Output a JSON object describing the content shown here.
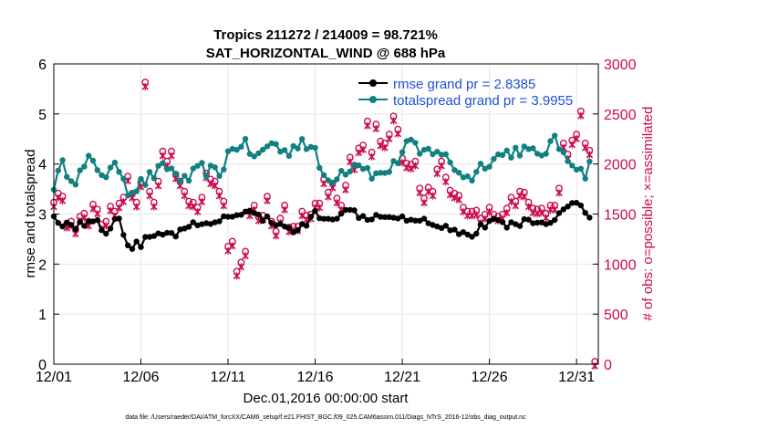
{
  "colors": {
    "rmse": "#000000",
    "spread": "#108080",
    "obs": "#cc0a4f",
    "legend_text": "#1f4fd8",
    "grid": "#e6e6e6"
  },
  "chart_data": {
    "type": "line",
    "title": "Tropics 211272 / 214009 = 98.721%",
    "subtitle": "SAT_HORIZONTAL_WIND @ 688 hPa",
    "xlabel": "Dec.01,2016 00:00:00 start",
    "ylabel": "rmse and totalspread",
    "y2label": "# of obs: o=possible; ×=assimilated",
    "footer": "data file: /Users/raeder/DAI/ATM_forcXX/CAM6_setup/f.e21.FHIST_BGC.f09_025.CAM6assim.011/Diags_NTrS_2016-12/obs_diag_output.nc",
    "x_ticks": [
      {
        "label": "12/01",
        "day": 0
      },
      {
        "label": "12/06",
        "day": 5
      },
      {
        "label": "12/11",
        "day": 10
      },
      {
        "label": "12/16",
        "day": 15
      },
      {
        "label": "12/21",
        "day": 20
      },
      {
        "label": "12/26",
        "day": 25
      },
      {
        "label": "12/31",
        "day": 30
      }
    ],
    "xlim": [
      0,
      31.25
    ],
    "ylim": [
      0,
      6
    ],
    "yticks": [
      "0",
      "1",
      "2",
      "3",
      "4",
      "5",
      "6"
    ],
    "y2lim": [
      0,
      3000
    ],
    "y2ticks": [
      "0",
      "500",
      "1000",
      "1500",
      "2000",
      "2500",
      "3000"
    ],
    "grid": true,
    "legend_position": "top-right",
    "series": [
      {
        "name": "rmse grand pr = 2.8385",
        "axis": "left",
        "marker": "dot",
        "anchors": [
          [
            0,
            2.95
          ],
          [
            0.6,
            2.8
          ],
          [
            1.3,
            2.75
          ],
          [
            2.2,
            2.9
          ],
          [
            3,
            2.65
          ],
          [
            3.7,
            3.0
          ],
          [
            4.2,
            2.35
          ],
          [
            5,
            2.4
          ],
          [
            6,
            2.65
          ],
          [
            7,
            2.6
          ],
          [
            8.2,
            2.8
          ],
          [
            9,
            2.75
          ],
          [
            10,
            2.95
          ],
          [
            11.2,
            3.05
          ],
          [
            12,
            2.9
          ],
          [
            13,
            2.8
          ],
          [
            14,
            2.65
          ],
          [
            15,
            3.0
          ],
          [
            16,
            2.95
          ],
          [
            17,
            3.05
          ],
          [
            18,
            2.95
          ],
          [
            19,
            3.0
          ],
          [
            20,
            2.95
          ],
          [
            21,
            2.9
          ],
          [
            22,
            2.8
          ],
          [
            23,
            2.7
          ],
          [
            23.8,
            2.55
          ],
          [
            25,
            2.85
          ],
          [
            26,
            2.8
          ],
          [
            27,
            2.85
          ],
          [
            28,
            2.8
          ],
          [
            29,
            3.0
          ],
          [
            30,
            3.25
          ],
          [
            30.6,
            2.95
          ]
        ]
      },
      {
        "name": "totalspread grand pr = 3.9955",
        "axis": "left",
        "marker": "dot",
        "anchors": [
          [
            0,
            3.6
          ],
          [
            0.5,
            3.95
          ],
          [
            1.3,
            3.7
          ],
          [
            2,
            4.05
          ],
          [
            3,
            3.8
          ],
          [
            3.8,
            3.95
          ],
          [
            4.3,
            3.45
          ],
          [
            5,
            3.6
          ],
          [
            5.8,
            3.8
          ],
          [
            6.5,
            3.95
          ],
          [
            7.5,
            3.65
          ],
          [
            8.5,
            3.9
          ],
          [
            9.5,
            3.8
          ],
          [
            10,
            4.2
          ],
          [
            10.8,
            4.45
          ],
          [
            11.6,
            4.1
          ],
          [
            12.5,
            4.45
          ],
          [
            13.3,
            4.2
          ],
          [
            14.2,
            4.5
          ],
          [
            15,
            4.2
          ],
          [
            15.6,
            3.65
          ],
          [
            16.5,
            3.85
          ],
          [
            17.5,
            4.05
          ],
          [
            18.5,
            3.75
          ],
          [
            19.5,
            3.95
          ],
          [
            20.3,
            4.45
          ],
          [
            21,
            4.2
          ],
          [
            22,
            4.3
          ],
          [
            22.8,
            4.0
          ],
          [
            23.8,
            3.7
          ],
          [
            24.8,
            4.05
          ],
          [
            25.8,
            4.2
          ],
          [
            26.8,
            4.3
          ],
          [
            27.8,
            4.15
          ],
          [
            28.7,
            4.45
          ],
          [
            29.7,
            4.1
          ],
          [
            30.4,
            3.75
          ],
          [
            30.9,
            4.2
          ]
        ]
      },
      {
        "name": "# of obs possible / assimilated",
        "axis": "right",
        "marker": "o-x",
        "points": [
          [
            0,
            1590
          ],
          [
            0.25,
            1680
          ],
          [
            0.5,
            1650
          ],
          [
            0.75,
            1380
          ],
          [
            1,
            1400
          ],
          [
            1.25,
            1320
          ],
          [
            1.5,
            1450
          ],
          [
            1.75,
            1480
          ],
          [
            2,
            1400
          ],
          [
            2.25,
            1570
          ],
          [
            2.5,
            1520
          ],
          [
            2.75,
            1370
          ],
          [
            3,
            1400
          ],
          [
            3.25,
            1550
          ],
          [
            3.5,
            1500
          ],
          [
            3.75,
            1580
          ],
          [
            4,
            1640
          ],
          [
            4.25,
            1850
          ],
          [
            4.5,
            1680
          ],
          [
            4.75,
            1590
          ],
          [
            5,
            1790
          ],
          [
            5.25,
            2790
          ],
          [
            5.5,
            1700
          ],
          [
            5.75,
            1590
          ],
          [
            6,
            1800
          ],
          [
            6.25,
            2100
          ],
          [
            6.5,
            2000
          ],
          [
            6.75,
            2100
          ],
          [
            7,
            1870
          ],
          [
            7.25,
            1800
          ],
          [
            7.5,
            1700
          ],
          [
            7.75,
            1600
          ],
          [
            8,
            1590
          ],
          [
            8.25,
            1540
          ],
          [
            8.5,
            1640
          ],
          [
            8.75,
            1880
          ],
          [
            9,
            1820
          ],
          [
            9.25,
            1800
          ],
          [
            9.5,
            1700
          ],
          [
            9.75,
            1600
          ],
          [
            10,
            1150
          ],
          [
            10.25,
            1200
          ],
          [
            10.5,
            900
          ],
          [
            10.75,
            990
          ],
          [
            11,
            1100
          ],
          [
            11.25,
            1500
          ],
          [
            11.5,
            1560
          ],
          [
            11.75,
            1450
          ],
          [
            12,
            1460
          ],
          [
            12.25,
            1650
          ],
          [
            12.5,
            1400
          ],
          [
            12.75,
            1300
          ],
          [
            13,
            1430
          ],
          [
            13.25,
            1560
          ],
          [
            13.5,
            1340
          ],
          [
            13.75,
            1350
          ],
          [
            14,
            1350
          ],
          [
            14.25,
            1500
          ],
          [
            14.5,
            1460
          ],
          [
            14.75,
            1470
          ],
          [
            15,
            1580
          ],
          [
            15.25,
            1580
          ],
          [
            15.5,
            1820
          ],
          [
            15.75,
            1690
          ],
          [
            16,
            1780
          ],
          [
            16.25,
            1630
          ],
          [
            16.5,
            1560
          ],
          [
            16.75,
            1760
          ],
          [
            17,
            2040
          ],
          [
            17.25,
            1960
          ],
          [
            17.5,
            2130
          ],
          [
            17.75,
            2160
          ],
          [
            18,
            2400
          ],
          [
            18.25,
            2090
          ],
          [
            18.5,
            2370
          ],
          [
            18.75,
            2200
          ],
          [
            19,
            2180
          ],
          [
            19.25,
            2270
          ],
          [
            19.5,
            2450
          ],
          [
            19.75,
            2320
          ],
          [
            20,
            2030
          ],
          [
            20.25,
            1980
          ],
          [
            20.5,
            1970
          ],
          [
            20.75,
            2000
          ],
          [
            21,
            1730
          ],
          [
            21.25,
            1630
          ],
          [
            21.5,
            1740
          ],
          [
            21.75,
            1700
          ],
          [
            22,
            1920
          ],
          [
            22.25,
            2000
          ],
          [
            22.5,
            1840
          ],
          [
            22.75,
            1710
          ],
          [
            23,
            1680
          ],
          [
            23.25,
            1660
          ],
          [
            23.5,
            1540
          ],
          [
            23.75,
            1500
          ],
          [
            24,
            1500
          ],
          [
            24.25,
            1510
          ],
          [
            24.5,
            1430
          ],
          [
            24.75,
            1470
          ],
          [
            25,
            1540
          ],
          [
            25.25,
            1470
          ],
          [
            25.5,
            1450
          ],
          [
            25.75,
            1470
          ],
          [
            26,
            1530
          ],
          [
            26.25,
            1640
          ],
          [
            26.5,
            1600
          ],
          [
            26.75,
            1700
          ],
          [
            27,
            1690
          ],
          [
            27.25,
            1590
          ],
          [
            27.5,
            1530
          ],
          [
            27.75,
            1520
          ],
          [
            28,
            1530
          ],
          [
            28.25,
            1480
          ],
          [
            28.5,
            1560
          ],
          [
            28.75,
            1560
          ],
          [
            29,
            1730
          ],
          [
            29.25,
            2180
          ],
          [
            29.5,
            2070
          ],
          [
            29.75,
            2210
          ],
          [
            30,
            2270
          ],
          [
            30.25,
            2500
          ],
          [
            30.5,
            2180
          ],
          [
            30.75,
            2110
          ],
          [
            31.05,
            0
          ]
        ]
      }
    ]
  }
}
